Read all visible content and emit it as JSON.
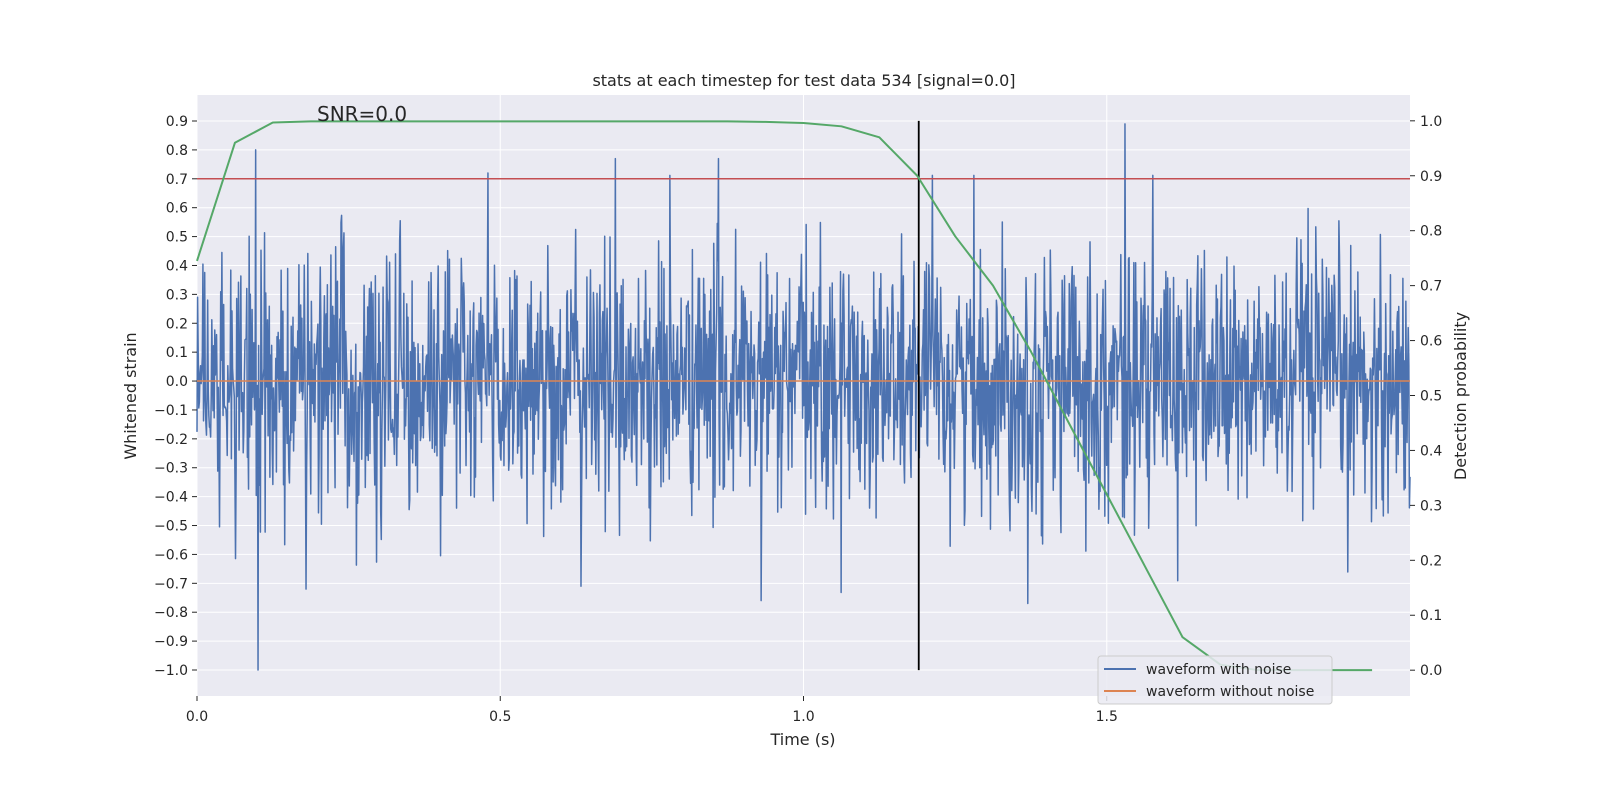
{
  "chart_data": {
    "type": "line",
    "title": "stats at each timestep for test data 534 [signal=0.0]",
    "xlabel": "Time (s)",
    "ylabel_left": "Whitened strain",
    "ylabel_right": "Detection probability",
    "xlim": [
      0.0,
      2.0
    ],
    "ylim_left": [
      -1.09,
      0.99
    ],
    "ylim_right": [
      -0.047,
      1.047
    ],
    "x_ticks": [
      0.0,
      0.5,
      1.0,
      1.5
    ],
    "x_tick_labels": [
      "0.0",
      "0.5",
      "1.0",
      "1.5"
    ],
    "y_left_ticks": [
      0.9,
      0.8,
      0.7,
      0.6,
      0.5,
      0.4,
      0.3,
      0.2,
      0.1,
      0.0,
      -0.1,
      -0.2,
      -0.3,
      -0.4,
      -0.5,
      -0.6,
      -0.7,
      -0.8,
      -0.9,
      -1.0
    ],
    "y_left_tick_labels": [
      "0.9",
      "0.8",
      "0.7",
      "0.6",
      "0.5",
      "0.4",
      "0.3",
      "0.2",
      "0.1",
      "0.0",
      "−0.1",
      "−0.2",
      "−0.3",
      "−0.4",
      "−0.5",
      "−0.6",
      "−0.7",
      "−0.8",
      "−0.9",
      "−1.0"
    ],
    "y_right_ticks": [
      1.0,
      0.9,
      0.8,
      0.7,
      0.6,
      0.5,
      0.4,
      0.3,
      0.2,
      0.1,
      0.0
    ],
    "y_right_tick_labels": [
      "1.0",
      "0.9",
      "0.8",
      "0.7",
      "0.6",
      "0.5",
      "0.4",
      "0.3",
      "0.2",
      "0.1",
      "0.0"
    ],
    "grid": true,
    "annotation": "SNR=0.0",
    "annotation_x": 0.2,
    "annotation_y": 0.9,
    "threshold_y_left": 0.7,
    "threshold_x": 1.19,
    "legend_placement": "lower-right",
    "series": [
      {
        "name": "waveform with noise",
        "color": "#4c72b0",
        "axis": "left",
        "generated": true,
        "x_start": 0.0,
        "x_end": 2.0,
        "count": 2048,
        "amplitude": 0.22,
        "range": [
          -1.0,
          0.89
        ],
        "spikes": [
          {
            "x": 0.097,
            "y": 0.8
          },
          {
            "x": 0.101,
            "y": -1.0
          },
          {
            "x": 0.48,
            "y": 0.72
          },
          {
            "x": 0.69,
            "y": 0.77
          },
          {
            "x": 0.86,
            "y": 0.77
          },
          {
            "x": 1.53,
            "y": 0.89
          },
          {
            "x": 1.37,
            "y": -0.77
          },
          {
            "x": 0.93,
            "y": -0.76
          },
          {
            "x": 0.18,
            "y": -0.72
          }
        ]
      },
      {
        "name": "waveform without noise",
        "color": "#dd8452",
        "axis": "left",
        "x": [
          0.0,
          2.0
        ],
        "values": [
          0.0,
          0.0
        ]
      },
      {
        "name": "detection probability",
        "color": "#55a868",
        "axis": "right",
        "x": [
          0.0,
          0.0625,
          0.125,
          0.1875,
          0.25,
          0.3125,
          0.375,
          0.4375,
          0.5,
          0.5625,
          0.625,
          0.6875,
          0.75,
          0.8125,
          0.875,
          0.9375,
          1.0,
          1.0625,
          1.125,
          1.1875,
          1.25,
          1.3125,
          1.375,
          1.4375,
          1.5,
          1.5625,
          1.625,
          1.6875,
          1.75,
          1.8125,
          1.875,
          1.9375
        ],
        "values": [
          0.745,
          0.96,
          0.997,
          0.999,
          0.999,
          0.999,
          0.999,
          0.999,
          0.999,
          0.999,
          0.999,
          0.999,
          0.999,
          0.999,
          0.999,
          0.998,
          0.996,
          0.99,
          0.97,
          0.9,
          0.79,
          0.7,
          0.58,
          0.45,
          0.32,
          0.19,
          0.06,
          0.01,
          0.0,
          0.0,
          0.0,
          0.0
        ]
      }
    ],
    "colors": {
      "plot_bg": "#eaeaf2",
      "grid": "#ffffff",
      "threshold_h": "#c44e52",
      "threshold_v": "#000000"
    }
  }
}
